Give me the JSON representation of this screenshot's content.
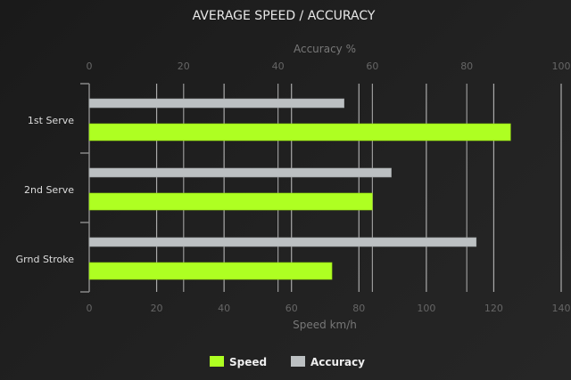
{
  "chart_data": {
    "type": "bar",
    "orientation": "horizontal",
    "title": "AVERAGE SPEED / ACCURACY",
    "categories": [
      "1st Serve",
      "2nd Serve",
      "Grnd Stroke"
    ],
    "series": [
      {
        "name": "Accuracy",
        "axis": "top",
        "color": "#bcc0c2",
        "values": [
          54,
          64,
          82
        ]
      },
      {
        "name": "Speed",
        "axis": "bottom",
        "color": "#aeff22",
        "values": [
          125,
          84,
          72
        ]
      }
    ],
    "xaxis_bottom": {
      "label": "Speed km/h",
      "range": [
        0,
        140
      ],
      "ticks": [
        0,
        20,
        40,
        60,
        80,
        100,
        120,
        140
      ]
    },
    "xaxis_top": {
      "label": "Accuracy %",
      "range": [
        0,
        100
      ],
      "ticks": [
        0,
        20,
        40,
        60,
        80,
        100
      ]
    },
    "grid": true,
    "legend": {
      "placement": "bottom",
      "entries": [
        "Speed",
        "Accuracy"
      ]
    }
  }
}
